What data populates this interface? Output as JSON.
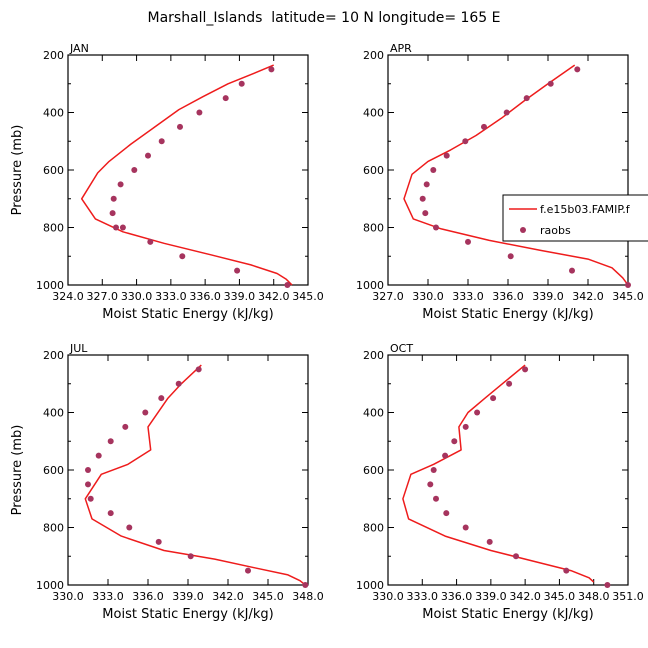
{
  "figure": {
    "title": "Marshall_Islands  latitude= 10 N longitude= 165 E"
  },
  "legend": {
    "model_label": "f.e15b03.FAMIP.f",
    "obs_label": "raobs"
  },
  "colors": {
    "model_line": "#ee1c1c",
    "obs_marker": "#a6345e",
    "axis": "#000000",
    "background": "#ffffff"
  },
  "chart_data": [
    {
      "type": "line",
      "panel_label": "JAN",
      "xlabel": "Moist Static Energy (kJ/kg)",
      "ylabel": "Pressure (mb)",
      "xlim": [
        324.0,
        345.0
      ],
      "ylim": [
        1000,
        200
      ],
      "xticks": [
        324.0,
        327.0,
        330.0,
        333.0,
        336.0,
        339.0,
        342.0,
        345.0
      ],
      "xtick_labels": [
        "324.0",
        "327.0",
        "330.0",
        "333.0",
        "336.0",
        "339.0",
        "342.0",
        "345.0"
      ],
      "yticks": [
        200,
        400,
        600,
        800,
        1000
      ],
      "ytick_labels": [
        "200",
        "400",
        "600",
        "800",
        "1000"
      ],
      "series": [
        {
          "name": "f.e15b03.FAMIP.f",
          "style": "line",
          "x": [
            342.0,
            340.2,
            338.0,
            335.8,
            333.7,
            331.6,
            329.5,
            327.6,
            326.6,
            325.2,
            326.4,
            328.8,
            332.4,
            336.5,
            340.0,
            342.3,
            343.1,
            343.6
          ],
          "y": [
            235,
            265,
            300,
            345,
            390,
            450,
            510,
            570,
            610,
            700,
            770,
            815,
            855,
            895,
            930,
            960,
            980,
            1000
          ]
        },
        {
          "name": "raobs",
          "style": "markers",
          "x": [
            341.8,
            339.2,
            337.8,
            335.5,
            333.8,
            332.2,
            331.0,
            329.8,
            328.6,
            328.0,
            327.9,
            328.2,
            328.8,
            331.2,
            334.0,
            338.8,
            343.2
          ],
          "y": [
            250,
            300,
            350,
            400,
            450,
            500,
            550,
            600,
            650,
            700,
            750,
            800,
            800,
            850,
            900,
            950,
            1000
          ]
        }
      ]
    },
    {
      "type": "line",
      "panel_label": "APR",
      "xlabel": "Moist Static Energy (kJ/kg)",
      "ylabel": "",
      "xlim": [
        327.0,
        345.0
      ],
      "ylim": [
        1000,
        200
      ],
      "xticks": [
        327.0,
        330.0,
        333.0,
        336.0,
        339.0,
        342.0,
        345.0
      ],
      "xtick_labels": [
        "327.0",
        "330.0",
        "333.0",
        "336.0",
        "339.0",
        "342.0",
        "345.0"
      ],
      "yticks": [
        200,
        400,
        600,
        800,
        1000
      ],
      "ytick_labels": [
        "200",
        "400",
        "600",
        "800",
        "1000"
      ],
      "series": [
        {
          "name": "f.e15b03.FAMIP.f",
          "style": "line",
          "x": [
            341.0,
            339.0,
            337.2,
            335.5,
            333.6,
            331.7,
            330.0,
            328.8,
            328.2,
            328.9,
            331.0,
            334.6,
            338.5,
            342.0,
            343.8,
            344.6,
            345.0
          ],
          "y": [
            235,
            300,
            360,
            420,
            480,
            530,
            570,
            615,
            700,
            770,
            805,
            845,
            880,
            910,
            940,
            975,
            1000
          ]
        },
        {
          "name": "raobs",
          "style": "markers",
          "x": [
            341.2,
            339.2,
            337.4,
            335.9,
            334.2,
            332.8,
            331.4,
            330.4,
            329.9,
            329.6,
            329.8,
            330.6,
            333.0,
            336.2,
            340.8,
            345.0
          ],
          "y": [
            250,
            300,
            350,
            400,
            450,
            500,
            550,
            600,
            650,
            700,
            750,
            800,
            850,
            900,
            950,
            1000
          ]
        }
      ]
    },
    {
      "type": "line",
      "panel_label": "JUL",
      "xlabel": "Moist Static Energy (kJ/kg)",
      "ylabel": "Pressure (mb)",
      "xlim": [
        330.0,
        348.0
      ],
      "ylim": [
        1000,
        200
      ],
      "xticks": [
        330.0,
        333.0,
        336.0,
        339.0,
        342.0,
        345.0,
        348.0
      ],
      "xtick_labels": [
        "330.0",
        "333.0",
        "336.0",
        "339.0",
        "342.0",
        "345.0",
        "348.0"
      ],
      "yticks": [
        200,
        400,
        600,
        800,
        1000
      ],
      "ytick_labels": [
        "200",
        "400",
        "600",
        "800",
        "1000"
      ],
      "series": [
        {
          "name": "f.e15b03.FAMIP.f",
          "style": "line",
          "x": [
            340.0,
            338.5,
            337.5,
            336.0,
            336.2,
            334.5,
            332.5,
            331.3,
            331.8,
            334.0,
            337.2,
            341.0,
            344.0,
            346.5,
            347.4,
            347.8
          ],
          "y": [
            235,
            300,
            350,
            450,
            530,
            580,
            615,
            700,
            770,
            830,
            880,
            910,
            940,
            965,
            985,
            1000
          ]
        },
        {
          "name": "raobs",
          "style": "markers",
          "x": [
            339.8,
            338.3,
            337.0,
            335.8,
            334.3,
            333.2,
            332.3,
            331.5,
            331.5,
            331.7,
            333.2,
            334.6,
            336.8,
            339.2,
            343.5,
            347.8
          ],
          "y": [
            250,
            300,
            350,
            400,
            450,
            500,
            550,
            600,
            650,
            700,
            750,
            800,
            850,
            900,
            950,
            1000
          ]
        }
      ]
    },
    {
      "type": "line",
      "panel_label": "OCT",
      "xlabel": "Moist Static Energy (kJ/kg)",
      "ylabel": "",
      "xlim": [
        330.0,
        351.0
      ],
      "ylim": [
        1000,
        200
      ],
      "xticks": [
        330.0,
        333.0,
        336.0,
        339.0,
        342.0,
        345.0,
        348.0,
        351.0
      ],
      "xtick_labels": [
        "330.0",
        "333.0",
        "336.0",
        "339.0",
        "342.0",
        "345.0",
        "348.0",
        "351.0"
      ],
      "yticks": [
        200,
        400,
        600,
        800,
        1000
      ],
      "ytick_labels": [
        "200",
        "400",
        "600",
        "800",
        "1000"
      ],
      "series": [
        {
          "name": "f.e15b03.FAMIP.f",
          "style": "line",
          "x": [
            342.0,
            340.0,
            338.5,
            337.0,
            336.2,
            336.4,
            334.0,
            332.0,
            331.3,
            331.8,
            335.0,
            339.0,
            343.0,
            346.0,
            347.6,
            348.0
          ],
          "y": [
            235,
            300,
            350,
            400,
            450,
            530,
            580,
            615,
            700,
            770,
            830,
            880,
            920,
            950,
            975,
            990
          ]
        },
        {
          "name": "raobs",
          "style": "markers",
          "x": [
            342.0,
            340.6,
            339.2,
            337.8,
            336.8,
            335.8,
            335.0,
            334.0,
            333.7,
            334.2,
            335.1,
            336.8,
            338.9,
            341.2,
            345.6,
            349.2
          ],
          "y": [
            250,
            300,
            350,
            400,
            450,
            500,
            550,
            600,
            650,
            700,
            750,
            800,
            850,
            900,
            950,
            1000
          ]
        }
      ]
    }
  ]
}
